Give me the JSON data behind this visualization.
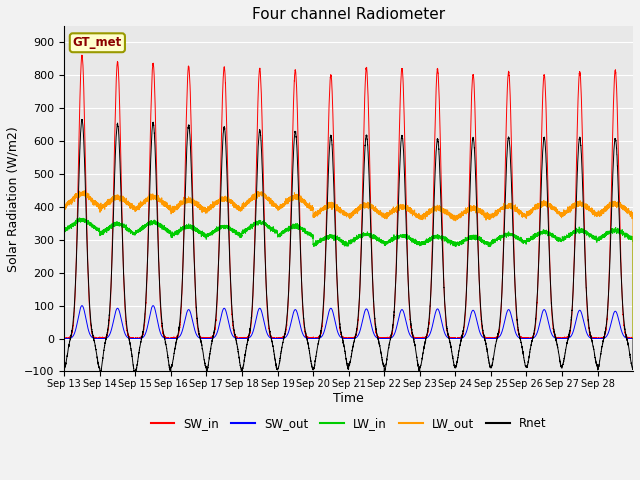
{
  "title": "Four channel Radiometer",
  "xlabel": "Time",
  "ylabel": "Solar Radiation (W/m2)",
  "ylim": [
    -100,
    950
  ],
  "yticks": [
    -100,
    0,
    100,
    200,
    300,
    400,
    500,
    600,
    700,
    800,
    900
  ],
  "x_labels": [
    "Sep 13",
    "Sep 14",
    "Sep 15",
    "Sep 16",
    "Sep 17",
    "Sep 18",
    "Sep 19",
    "Sep 20",
    "Sep 21",
    "Sep 22",
    "Sep 23",
    "Sep 24",
    "Sep 25",
    "Sep 26",
    "Sep 27",
    "Sep 28"
  ],
  "n_days": 16,
  "station_label": "GT_met",
  "colors": {
    "SW_in": "#ff0000",
    "SW_out": "#0000ff",
    "LW_in": "#00cc00",
    "LW_out": "#ff9900",
    "Rnet": "#000000"
  },
  "fig_bg": "#f2f2f2",
  "plot_bg": "#e8e8e8",
  "SW_in_peak": [
    860,
    840,
    835,
    828,
    824,
    820,
    815,
    800,
    822,
    820,
    818,
    802,
    810,
    802,
    810,
    815
  ],
  "SW_out_peak": [
    100,
    92,
    100,
    88,
    92,
    92,
    88,
    92,
    90,
    88,
    90,
    86,
    88,
    88,
    86,
    83
  ],
  "Rnet_peak": [
    665,
    652,
    655,
    648,
    642,
    632,
    628,
    616,
    618,
    616,
    606,
    610,
    612,
    610,
    610,
    608
  ],
  "Rnet_trough": [
    -90,
    -108,
    -98,
    -88,
    -98,
    -93,
    -93,
    -93,
    -83,
    -98,
    -88,
    -88,
    -88,
    -88,
    -83,
    -93
  ],
  "LW_out_base": [
    390,
    385,
    385,
    380,
    380,
    390,
    385,
    365,
    365,
    362,
    358,
    358,
    363,
    368,
    368,
    368
  ],
  "LW_out_bump": [
    50,
    45,
    45,
    40,
    45,
    50,
    45,
    40,
    40,
    38,
    38,
    38,
    40,
    42,
    42,
    42
  ],
  "LW_in_base": [
    320,
    310,
    315,
    305,
    305,
    315,
    305,
    278,
    285,
    282,
    280,
    278,
    285,
    290,
    295,
    295
  ],
  "LW_in_bump": [
    40,
    38,
    38,
    35,
    35,
    38,
    35,
    32,
    32,
    30,
    30,
    30,
    32,
    33,
    33,
    33
  ]
}
